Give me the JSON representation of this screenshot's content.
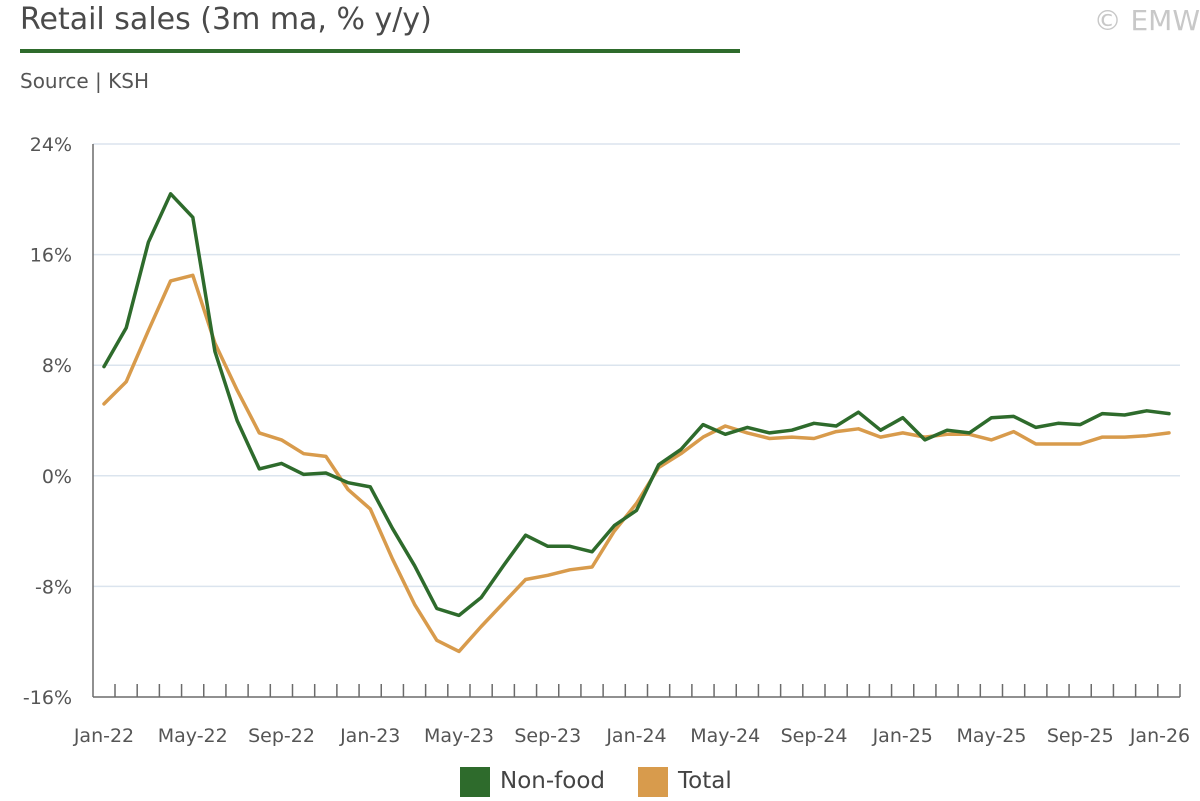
{
  "header": {
    "title": "Retail sales (3m ma, % y/y)",
    "source": "Source | KSH",
    "copyright": "© EMW"
  },
  "colors": {
    "accent": "#2e6b2c",
    "nonfood": "#2e6b2c",
    "total": "#d89b4c",
    "grid": "#dbe4ee",
    "axis": "#6b6b6b"
  },
  "chart_data": {
    "type": "line",
    "title": "Retail sales (3m ma, % y/y)",
    "xlabel": "",
    "ylabel": "",
    "ylim": [
      -16,
      24
    ],
    "yticks": [
      24,
      16,
      8,
      0,
      -8,
      -16
    ],
    "ytick_labels": [
      "24%",
      "16%",
      "8%",
      "0%",
      "-8%",
      "-16%"
    ],
    "grid": true,
    "legend_position": "bottom-center",
    "x_tick_labels": [
      "Jan-22",
      "May-22",
      "Sep-22",
      "Jan-23",
      "May-23",
      "Sep-23",
      "Jan-24",
      "May-24",
      "Sep-24",
      "Jan-25",
      "May-25",
      "Sep-25",
      "Jan-26"
    ],
    "x_tick_label_every": 4,
    "x": [
      "Jan-22",
      "Feb-22",
      "Mar-22",
      "Apr-22",
      "May-22",
      "Jun-22",
      "Jul-22",
      "Aug-22",
      "Sep-22",
      "Oct-22",
      "Nov-22",
      "Dec-22",
      "Jan-23",
      "Feb-23",
      "Mar-23",
      "Apr-23",
      "May-23",
      "Jun-23",
      "Jul-23",
      "Aug-23",
      "Sep-23",
      "Oct-23",
      "Nov-23",
      "Dec-23",
      "Jan-24",
      "Feb-24",
      "Mar-24",
      "Apr-24",
      "May-24",
      "Jun-24",
      "Jul-24",
      "Aug-24",
      "Sep-24",
      "Oct-24",
      "Nov-24",
      "Dec-24",
      "Jan-25",
      "Feb-25",
      "Mar-25",
      "Apr-25",
      "May-25",
      "Jun-25",
      "Jul-25",
      "Aug-25",
      "Sep-25",
      "Oct-25",
      "Nov-25",
      "Dec-25",
      "Jan-26"
    ],
    "series": [
      {
        "name": "Non-food",
        "values": [
          7.9,
          10.7,
          16.9,
          20.4,
          18.7,
          9.0,
          4.0,
          0.5,
          0.9,
          0.1,
          0.2,
          -0.5,
          -0.8,
          -3.8,
          -6.5,
          -9.6,
          -10.1,
          -8.8,
          -6.5,
          -4.3,
          -5.1,
          -5.1,
          -5.5,
          -3.6,
          -2.5,
          0.8,
          1.9,
          3.7,
          3.0,
          3.5,
          3.1,
          3.3,
          3.8,
          3.6,
          4.6,
          3.3,
          4.2,
          2.6,
          3.3,
          3.1,
          4.2,
          4.3,
          3.5,
          3.8,
          3.7,
          4.5,
          4.4,
          4.7,
          4.5
        ]
      },
      {
        "name": "Total",
        "values": [
          5.2,
          6.8,
          10.5,
          14.1,
          14.5,
          9.6,
          6.2,
          3.1,
          2.6,
          1.6,
          1.4,
          -1.0,
          -2.4,
          -6.0,
          -9.3,
          -11.9,
          -12.7,
          -10.9,
          -9.2,
          -7.5,
          -7.2,
          -6.8,
          -6.6,
          -4.0,
          -2.0,
          0.6,
          1.6,
          2.8,
          3.6,
          3.1,
          2.7,
          2.8,
          2.7,
          3.2,
          3.4,
          2.8,
          3.1,
          2.8,
          3.0,
          3.0,
          2.6,
          3.2,
          2.3,
          2.3,
          2.3,
          2.8,
          2.8,
          2.9,
          3.1
        ]
      }
    ]
  }
}
